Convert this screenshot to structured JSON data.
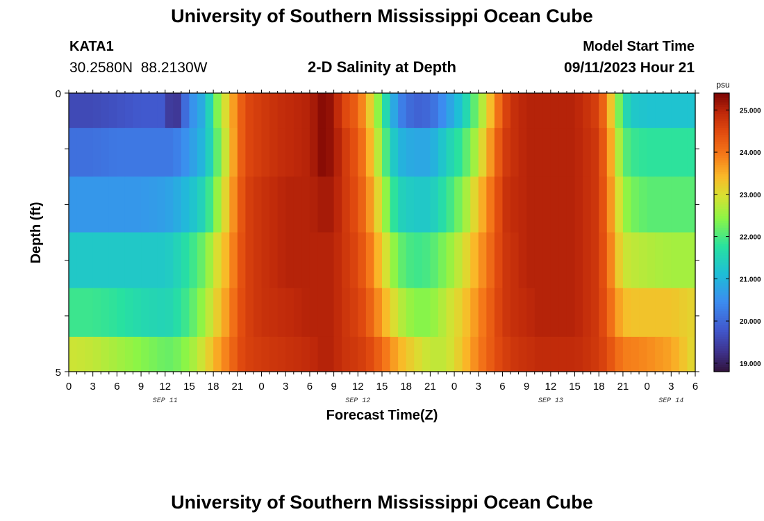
{
  "header": {
    "title": "University of Southern Mississippi Ocean Cube",
    "station": "KATA1",
    "coords": "30.2580N  88.2130W",
    "plot_title": "2-D Salinity at Depth",
    "model_label": "Model Start Time",
    "model_time": "09/11/2023 Hour 21"
  },
  "footer": {
    "title": "University of Southern Mississippi Ocean Cube"
  },
  "chart_data": {
    "type": "heatmap",
    "title": "2-D Salinity at Depth",
    "xlabel": "Forecast Time(Z)",
    "ylabel": "Depth (ft)",
    "y_range": [
      0,
      5
    ],
    "y_tick_labels": [
      "0",
      "5"
    ],
    "x_range_hours": [
      0,
      78
    ],
    "x_tick_labels": [
      "0",
      "3",
      "6",
      "9",
      "12",
      "15",
      "18",
      "21",
      "0",
      "3",
      "6",
      "9",
      "12",
      "15",
      "18",
      "21",
      "0",
      "3",
      "6",
      "9",
      "12",
      "15",
      "18",
      "21",
      "0",
      "3",
      "6"
    ],
    "date_labels": [
      {
        "text": "SEP 11",
        "hour": 12
      },
      {
        "text": "SEP 12",
        "hour": 36
      },
      {
        "text": "SEP 13",
        "hour": 60
      },
      {
        "text": "SEP 14",
        "hour": 75
      }
    ],
    "colorbar": {
      "unit": "psu",
      "min": 18.8,
      "max": 25.4,
      "ticks": [
        "19.000",
        "20.000",
        "21.000",
        "22.000",
        "23.000",
        "24.000",
        "25.000"
      ]
    },
    "depth_layers": [
      0.25,
      1.0,
      2.0,
      3.0,
      4.0,
      4.75
    ],
    "salinity_anchor_hours": [
      0,
      3,
      6,
      9,
      12,
      13,
      15,
      17,
      18,
      19,
      20,
      21,
      22,
      24,
      27,
      30,
      31.5,
      33,
      34,
      36,
      37,
      38,
      39,
      40,
      41,
      43,
      45,
      47,
      49,
      51,
      53,
      54,
      55,
      56,
      57,
      58,
      59,
      60,
      63,
      66,
      67,
      68,
      69,
      70,
      72,
      75,
      78
    ],
    "salinity_by_layer": [
      [
        19.6,
        19.6,
        19.7,
        19.8,
        19.8,
        19.0,
        20.4,
        21.0,
        22.0,
        22.7,
        23.3,
        24.0,
        24.5,
        24.7,
        24.9,
        25.0,
        25.3,
        25.2,
        24.6,
        24.2,
        23.5,
        22.9,
        22.0,
        21.2,
        20.4,
        19.9,
        20.0,
        20.6,
        21.3,
        22.4,
        23.7,
        24.4,
        24.8,
        24.9,
        25.0,
        25.0,
        25.0,
        25.0,
        25.0,
        24.6,
        23.8,
        22.8,
        21.8,
        21.3,
        21.2,
        21.2,
        21.2
      ],
      [
        20.1,
        20.1,
        20.2,
        20.2,
        20.2,
        20.2,
        20.6,
        21.1,
        21.8,
        22.5,
        23.2,
        24.0,
        24.5,
        24.7,
        24.9,
        25.0,
        25.3,
        25.2,
        24.8,
        24.3,
        23.8,
        23.1,
        22.4,
        21.6,
        21.0,
        20.8,
        20.8,
        21.4,
        21.9,
        22.8,
        24.0,
        24.6,
        24.8,
        24.9,
        25.0,
        25.0,
        25.0,
        25.0,
        25.0,
        24.7,
        24.0,
        23.1,
        22.2,
        21.9,
        21.8,
        21.8,
        21.8
      ],
      [
        20.6,
        20.6,
        20.6,
        20.6,
        20.7,
        20.8,
        21.1,
        21.6,
        22.2,
        22.8,
        23.4,
        24.1,
        24.6,
        24.8,
        25.0,
        25.0,
        25.1,
        25.1,
        24.8,
        24.4,
        24.0,
        23.4,
        22.8,
        22.1,
        21.5,
        21.3,
        21.3,
        21.8,
        22.4,
        23.3,
        24.2,
        24.7,
        24.9,
        24.9,
        25.0,
        25.0,
        25.0,
        25.0,
        25.0,
        24.7,
        24.1,
        23.3,
        22.6,
        22.3,
        22.1,
        22.1,
        22.1
      ],
      [
        21.3,
        21.3,
        21.3,
        21.3,
        21.3,
        21.4,
        21.8,
        22.3,
        22.8,
        23.2,
        23.6,
        24.2,
        24.6,
        24.8,
        25.0,
        25.0,
        25.0,
        25.0,
        24.8,
        24.5,
        24.2,
        23.7,
        23.2,
        22.7,
        22.2,
        21.9,
        22.0,
        22.4,
        22.9,
        23.6,
        24.3,
        24.7,
        24.8,
        24.9,
        25.0,
        25.0,
        25.0,
        25.0,
        25.0,
        24.7,
        24.2,
        23.5,
        22.9,
        22.8,
        22.7,
        22.6,
        22.6
      ],
      [
        21.9,
        21.9,
        21.8,
        21.6,
        21.5,
        21.6,
        22.0,
        22.6,
        23.0,
        23.4,
        23.8,
        24.3,
        24.6,
        24.8,
        24.9,
        25.0,
        25.0,
        25.0,
        24.8,
        24.6,
        24.4,
        24.0,
        23.6,
        23.2,
        22.8,
        22.4,
        22.4,
        22.8,
        23.2,
        23.8,
        24.4,
        24.7,
        24.8,
        24.9,
        24.9,
        25.0,
        25.0,
        25.0,
        25.0,
        24.7,
        24.3,
        23.8,
        23.4,
        23.3,
        23.3,
        23.3,
        23.1
      ],
      [
        22.9,
        22.8,
        22.6,
        22.4,
        22.2,
        22.2,
        22.5,
        23.0,
        23.4,
        23.7,
        24.0,
        24.4,
        24.6,
        24.7,
        24.8,
        24.9,
        25.0,
        25.0,
        24.8,
        24.7,
        24.6,
        24.4,
        24.1,
        23.8,
        23.5,
        23.1,
        22.8,
        22.8,
        23.3,
        23.9,
        24.4,
        24.6,
        24.7,
        24.8,
        24.8,
        24.9,
        24.9,
        24.9,
        24.9,
        24.7,
        24.5,
        24.2,
        23.9,
        23.9,
        23.8,
        23.6,
        23.0
      ]
    ]
  }
}
